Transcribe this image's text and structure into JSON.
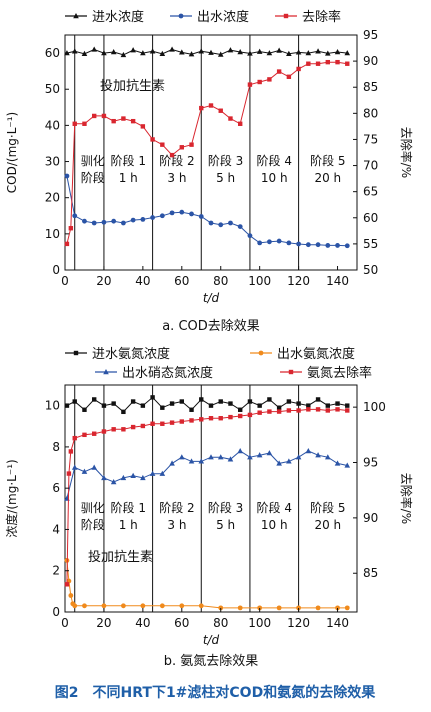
{
  "figure_caption": "图2　不同HRT下1#滤柱对COD和氨氮的去除效果",
  "colors": {
    "caption": "#1f5fa8",
    "black": "#111111",
    "blue": "#2b54a6",
    "red": "#d9262f",
    "orange": "#f08a1c"
  },
  "chart_data": [
    {
      "id": "cod",
      "type": "line",
      "caption": "a. COD去除效果",
      "xlabel": "t/d",
      "ylabel": "COD/(mg·L⁻¹)",
      "ylabel_right": "去除率/%",
      "xlim": [
        0,
        150
      ],
      "ylim": [
        0,
        65
      ],
      "ylim_right": [
        50,
        95
      ],
      "xticks": [
        0,
        20,
        40,
        60,
        80,
        100,
        120,
        140
      ],
      "yticks": [
        0,
        10,
        20,
        30,
        40,
        50,
        60
      ],
      "yticks_right": [
        50,
        55,
        60,
        65,
        70,
        75,
        80,
        85,
        90,
        95
      ],
      "stage_boundaries": [
        5,
        20,
        45,
        70,
        95,
        120
      ],
      "stage_labels": [
        {
          "x": 5,
          "line1": "驯化",
          "line2": "阶段"
        },
        {
          "x": 20,
          "line1": "阶段 1",
          "line2": "1 h"
        },
        {
          "x": 45,
          "line1": "阶段 2",
          "line2": "3 h"
        },
        {
          "x": 70,
          "line1": "阶段 3",
          "line2": "5 h"
        },
        {
          "x": 95,
          "line1": "阶段 4",
          "line2": "10 h"
        },
        {
          "x": 120,
          "line1": "阶段 5",
          "line2": "20 h"
        }
      ],
      "annotation": "投加抗生素",
      "legend": [
        "进水浓度",
        "出水浓度",
        "去除率"
      ],
      "series": [
        {
          "name": "进水浓度",
          "axis": "left",
          "marker": "triangle",
          "x": [
            1,
            5,
            10,
            15,
            20,
            25,
            30,
            35,
            40,
            45,
            50,
            55,
            60,
            65,
            70,
            75,
            80,
            85,
            90,
            95,
            100,
            105,
            110,
            115,
            120,
            125,
            130,
            135,
            140,
            145
          ],
          "y": [
            60,
            60.5,
            59.8,
            61,
            60,
            60.3,
            59.5,
            60.8,
            60,
            60.5,
            59.8,
            61,
            60.2,
            59.7,
            60.5,
            60.1,
            59.6,
            60.8,
            60.3,
            59.9,
            60.4,
            60,
            60.7,
            59.8,
            60.2,
            60,
            60.5,
            59.9,
            60.3,
            60
          ]
        },
        {
          "name": "出水浓度",
          "axis": "left",
          "marker": "circle",
          "x": [
            1,
            5,
            10,
            15,
            20,
            25,
            30,
            35,
            40,
            45,
            50,
            55,
            60,
            65,
            70,
            75,
            80,
            85,
            90,
            95,
            100,
            105,
            110,
            115,
            120,
            125,
            130,
            135,
            140,
            145
          ],
          "y": [
            26,
            15,
            13.5,
            13,
            13.2,
            13.5,
            13,
            13.8,
            14,
            14.5,
            15,
            15.8,
            16,
            15.5,
            14.8,
            13,
            12.5,
            13,
            12,
            9.5,
            7.5,
            7.8,
            8,
            7.5,
            7.2,
            7,
            7,
            6.8,
            6.8,
            6.7
          ]
        },
        {
          "name": "去除率",
          "axis": "right",
          "marker": "square",
          "x": [
            1,
            3,
            5,
            10,
            15,
            20,
            25,
            30,
            35,
            40,
            45,
            50,
            55,
            60,
            65,
            70,
            75,
            80,
            85,
            90,
            95,
            100,
            105,
            110,
            115,
            120,
            125,
            130,
            135,
            140,
            145
          ],
          "y": [
            55,
            58,
            78,
            78,
            79.5,
            79.5,
            78.5,
            79,
            78.5,
            77.5,
            75,
            74,
            72,
            73.5,
            74,
            81,
            81.5,
            80.5,
            79,
            78,
            85.5,
            86,
            86.5,
            88,
            87,
            88.5,
            89.5,
            89.5,
            89.8,
            89.8,
            89.5
          ]
        }
      ]
    },
    {
      "id": "ammonia",
      "type": "line",
      "caption": "b. 氨氮去除效果",
      "xlabel": "t/d",
      "ylabel": "浓度/(mg·L⁻¹)",
      "ylabel_right": "去除率/%",
      "xlim": [
        0,
        150
      ],
      "ylim": [
        0,
        11
      ],
      "ylim_right": [
        81.5,
        102
      ],
      "xticks": [
        0,
        20,
        40,
        60,
        80,
        100,
        120,
        140
      ],
      "yticks": [
        0,
        2,
        4,
        6,
        8,
        10
      ],
      "yticks_right": [
        85,
        90,
        95,
        100
      ],
      "stage_boundaries": [
        5,
        20,
        45,
        70,
        95,
        120
      ],
      "stage_labels": [
        {
          "x": 5,
          "line1": "驯化",
          "line2": "阶段"
        },
        {
          "x": 20,
          "line1": "阶段 1",
          "line2": "1 h"
        },
        {
          "x": 45,
          "line1": "阶段 2",
          "line2": "3 h"
        },
        {
          "x": 70,
          "line1": "阶段 3",
          "line2": "5 h"
        },
        {
          "x": 95,
          "line1": "阶段 4",
          "line2": "10 h"
        },
        {
          "x": 120,
          "line1": "阶段 5",
          "line2": "20 h"
        }
      ],
      "annotation": "投加抗生素",
      "legend": [
        "进水氨氮浓度",
        "出水氨氮浓度",
        "出水硝态氮浓度",
        "氨氮去除率"
      ],
      "series": [
        {
          "name": "进水氨氮浓度",
          "axis": "left",
          "marker": "square",
          "x": [
            1,
            5,
            10,
            15,
            20,
            25,
            30,
            35,
            40,
            45,
            50,
            55,
            60,
            65,
            70,
            75,
            80,
            85,
            90,
            95,
            100,
            105,
            110,
            115,
            120,
            125,
            130,
            135,
            140,
            145
          ],
          "y": [
            10,
            10.2,
            9.8,
            10.3,
            10,
            10.1,
            9.7,
            10.2,
            10,
            10.4,
            9.9,
            10.1,
            10.2,
            9.8,
            10.3,
            10,
            10.2,
            10.1,
            9.8,
            10.2,
            10,
            10.3,
            9.9,
            10.2,
            10.1,
            10,
            10.3,
            10,
            10.1,
            10
          ]
        },
        {
          "name": "出水氨氮浓度",
          "axis": "left",
          "marker": "circle",
          "x": [
            1,
            2,
            3,
            4,
            5,
            10,
            20,
            30,
            40,
            50,
            60,
            70,
            80,
            90,
            100,
            110,
            120,
            130,
            140,
            145
          ],
          "y": [
            2.5,
            1.5,
            0.8,
            0.4,
            0.3,
            0.3,
            0.3,
            0.3,
            0.3,
            0.3,
            0.3,
            0.3,
            0.2,
            0.2,
            0.2,
            0.2,
            0.2,
            0.2,
            0.2,
            0.2
          ]
        },
        {
          "name": "出水硝态氮浓度",
          "axis": "left",
          "marker": "triangle",
          "x": [
            1,
            5,
            10,
            15,
            20,
            25,
            30,
            35,
            40,
            45,
            50,
            55,
            60,
            65,
            70,
            75,
            80,
            85,
            90,
            95,
            100,
            105,
            110,
            115,
            120,
            125,
            130,
            135,
            140,
            145
          ],
          "y": [
            5.5,
            7,
            6.8,
            7,
            6.5,
            6.3,
            6.5,
            6.6,
            6.5,
            6.7,
            6.7,
            7.2,
            7.5,
            7.3,
            7.3,
            7.5,
            7.5,
            7.4,
            7.8,
            7.5,
            7.6,
            7.7,
            7.2,
            7.3,
            7.5,
            7.8,
            7.6,
            7.5,
            7.2,
            7.1
          ]
        },
        {
          "name": "氨氮去除率",
          "axis": "right",
          "marker": "square",
          "x": [
            1,
            2,
            3,
            5,
            10,
            15,
            20,
            25,
            30,
            35,
            40,
            45,
            50,
            55,
            60,
            65,
            70,
            75,
            80,
            85,
            90,
            95,
            100,
            105,
            110,
            115,
            120,
            125,
            130,
            135,
            140,
            145
          ],
          "y": [
            84,
            94,
            96,
            97.2,
            97.5,
            97.6,
            97.8,
            98,
            98,
            98.2,
            98.3,
            98.5,
            98.5,
            98.6,
            98.7,
            98.8,
            98.9,
            99,
            99,
            99.1,
            99.2,
            99.3,
            99.5,
            99.6,
            99.6,
            99.7,
            99.7,
            99.8,
            99.8,
            99.7,
            99.8,
            99.7
          ]
        }
      ]
    }
  ]
}
